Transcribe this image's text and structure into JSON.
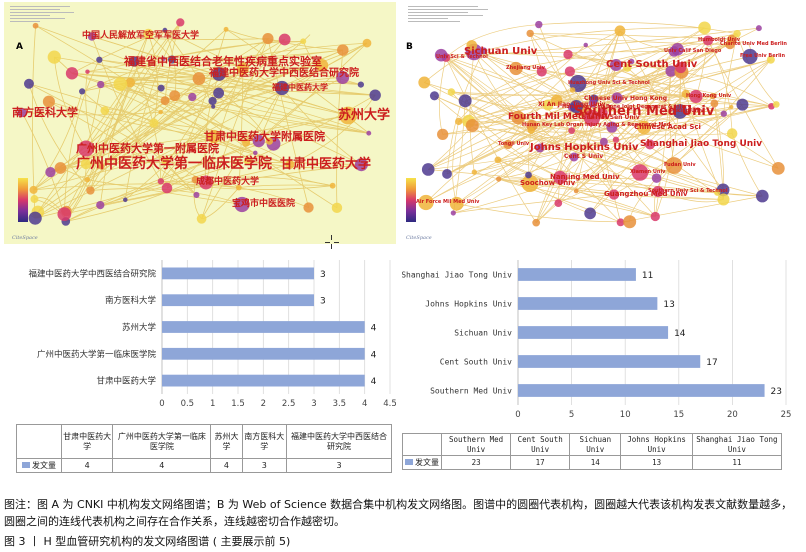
{
  "panel_a": {
    "letter": "A",
    "logo": "CiteSpace",
    "nodes": [
      {
        "label": "中国人民解放军空军军医大学",
        "size": 9,
        "color": "#cc1e1e"
      },
      {
        "label": "福建省中西医结合老年性疾病重点实验室",
        "size": 11,
        "color": "#cc1e1e"
      },
      {
        "label": "福建中医药大学中西医结合研究院",
        "size": 10,
        "color": "#cc1e1e"
      },
      {
        "label": "福建中医药大学",
        "size": 8,
        "color": "#cc1e1e"
      },
      {
        "label": "南方医科大学",
        "size": 11,
        "color": "#cc1e1e"
      },
      {
        "label": "苏州大学",
        "size": 13,
        "color": "#cc1e1e"
      },
      {
        "label": "甘肃中医药大学附属医院",
        "size": 11,
        "color": "#cc1e1e"
      },
      {
        "label": "广州中医药大学第一附属医院",
        "size": 11,
        "color": "#cc1e1e"
      },
      {
        "label": "广州中医药大学第一临床医学院",
        "size": 14,
        "color": "#cc1e1e"
      },
      {
        "label": "甘肃中医药大学",
        "size": 13,
        "color": "#cc1e1e"
      },
      {
        "label": "成都中医药大学",
        "size": 9,
        "color": "#cc1e1e"
      },
      {
        "label": "宝鸡市中医医院",
        "size": 9,
        "color": "#cc1e1e"
      }
    ]
  },
  "panel_b": {
    "letter": "B",
    "logo": "CiteSpace",
    "nodes": [
      {
        "label": "Sichuan Univ",
        "size": 10,
        "color": "#cc1e1e"
      },
      {
        "label": "Cent South Univ",
        "size": 10,
        "color": "#cc1e1e"
      },
      {
        "label": "Southern Med Univ",
        "size": 13,
        "color": "#cc1e1e"
      },
      {
        "label": "Fourth Mil Med Univ",
        "size": 9,
        "color": "#cc1e1e"
      },
      {
        "label": "Johns Hopkins Univ",
        "size": 10,
        "color": "#cc1e1e"
      },
      {
        "label": "Shanghai Jiao Tong Univ",
        "size": 9,
        "color": "#cc1e1e"
      },
      {
        "label": "Chinese Acad Sci",
        "size": 7,
        "color": "#cc1e1e"
      },
      {
        "label": "Nanjing Med Univ",
        "size": 7,
        "color": "#cc1e1e"
      },
      {
        "label": "Soochow Univ",
        "size": 7,
        "color": "#cc1e1e"
      },
      {
        "label": "Guangzhou Med Univ",
        "size": 7,
        "color": "#cc1e1e"
      },
      {
        "label": "Chinese Univ Hong Kong",
        "size": 6,
        "color": "#cc1e1e"
      },
      {
        "label": "Sun Yat Sen Univ",
        "size": 6,
        "color": "#cc1e1e"
      },
      {
        "label": "Huazhong Univ Sci & Technol",
        "size": 5,
        "color": "#cc1e1e"
      },
      {
        "label": "Cent S Univ",
        "size": 6,
        "color": "#cc1e1e"
      },
      {
        "label": "Xi An Jiao Tong Univ",
        "size": 6,
        "color": "#cc1e1e"
      },
      {
        "label": "Fudan Univ",
        "size": 5,
        "color": "#cc1e1e"
      },
      {
        "label": "Xiamen Univ",
        "size": 5,
        "color": "#cc1e1e"
      },
      {
        "label": "Peking Univ",
        "size": 5,
        "color": "#cc1e1e"
      },
      {
        "label": "Zhejiang Univ",
        "size": 5,
        "color": "#cc1e1e"
      },
      {
        "label": "Free Univ Berlin",
        "size": 5,
        "color": "#cc1e1e"
      },
      {
        "label": "Humboldt Univ",
        "size": 5,
        "color": "#cc1e1e"
      },
      {
        "label": "Charite Univ Med Berlin",
        "size": 5,
        "color": "#cc1e1e"
      },
      {
        "label": "Hunan Key Lab Bone Joint Degenerat & Injury",
        "size": 5,
        "color": "#cc1e1e"
      },
      {
        "label": "Hunan Key Lab Organ Injury Aging & Regenerat Med",
        "size": 5,
        "color": "#cc1e1e"
      },
      {
        "label": "Tongji Univ",
        "size": 5,
        "color": "#cc1e1e"
      },
      {
        "label": "Univ Sci & Technol",
        "size": 5,
        "color": "#cc1e1e"
      },
      {
        "label": "Southern Univ Sci & Technol",
        "size": 5,
        "color": "#cc1e1e"
      },
      {
        "label": "Air Force Mil Med Univ",
        "size": 5,
        "color": "#cc1e1e"
      },
      {
        "label": "Univ Calif San Diego",
        "size": 5,
        "color": "#cc1e1e"
      },
      {
        "label": "Hong Kong Univ",
        "size": 5,
        "color": "#cc1e1e"
      }
    ]
  },
  "chart_data": [
    {
      "type": "bar",
      "orientation": "horizontal",
      "categories": [
        "福建中医药大学中西医结合研究院",
        "南方医科大学",
        "苏州大学",
        "广州中医药大学第一临床医学院",
        "甘肃中医药大学"
      ],
      "values": [
        3,
        3,
        4,
        4,
        4
      ],
      "xlim": [
        0,
        4.5
      ],
      "xticks": [
        "0",
        "0.5",
        "1",
        "1.5",
        "2",
        "2.5",
        "3",
        "3.5",
        "4",
        "4.5"
      ],
      "color": "#8ea6d8",
      "table": {
        "series_label": "发文量",
        "headers": [
          "甘肃中医药大学",
          "广州中医药大学第一临床医学院",
          "苏州大学",
          "南方医科大学",
          "福建中医药大学中西医结合研究院"
        ],
        "values": [
          "4",
          "4",
          "4",
          "3",
          "3"
        ]
      }
    },
    {
      "type": "bar",
      "orientation": "horizontal",
      "categories": [
        "Shanghai Jiao Tong Univ",
        "Johns Hopkins Univ",
        "Sichuan Univ",
        "Cent South Univ",
        "Southern Med Univ"
      ],
      "values": [
        11,
        13,
        14,
        17,
        23
      ],
      "xlim": [
        0,
        25
      ],
      "xticks": [
        "0",
        "5",
        "10",
        "15",
        "20",
        "25"
      ],
      "color": "#8ea6d8",
      "table": {
        "series_label": "发文量",
        "headers": [
          "Southern Med Univ",
          "Cent South Univ",
          "Sichuan Univ",
          "Johns Hopkins Univ",
          "Shanghai Jiao Tong Univ"
        ],
        "values": [
          "23",
          "17",
          "14",
          "13",
          "11"
        ]
      }
    }
  ],
  "caption": {
    "note": "图注：图 A 为 CNKI 中机构发文网络图谱；B 为 Web of Science 数据合集中机构发文网络图。图谱中的圆圈代表机构，圆圈越大代表该机构发表文献数量越多，圆圈之间的连线代表机构之间存在合作关系，连线越密切合作越密切。",
    "figure": "图 3 丨 H 型血管研究机构的发文网络图谱 ( 主要展示前 5)"
  },
  "colors": {
    "bar": "#8ea6d8",
    "node_label": "#cc1e1e",
    "network_a_bg": "#f7f8c8",
    "network_b_bg": "#ffffff"
  }
}
